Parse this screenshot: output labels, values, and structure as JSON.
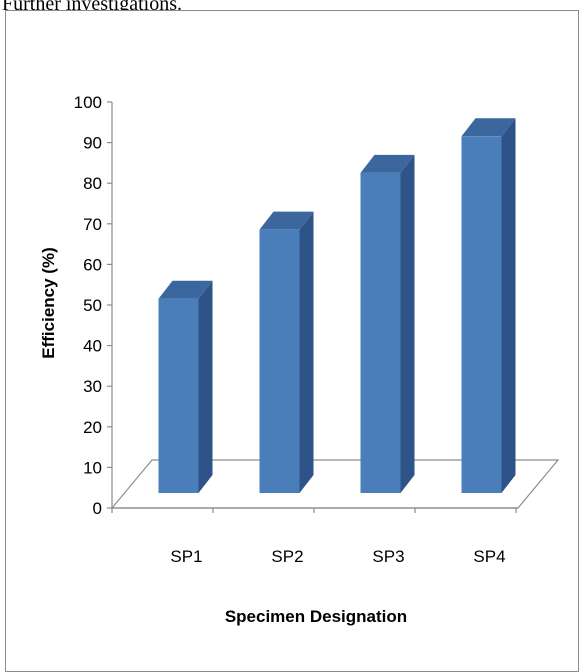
{
  "header": {
    "text": "Further investigations."
  },
  "chart_data": {
    "type": "bar",
    "style": "3d-column",
    "categories": [
      "SP1",
      "SP2",
      "SP3",
      "SP4"
    ],
    "values": [
      55,
      72,
      86,
      95
    ],
    "series": [
      {
        "values": [
          55,
          72,
          86,
          95
        ]
      }
    ],
    "title": "",
    "xlabel": "Specimen Designation",
    "ylabel": "Efficiency (%)",
    "ylim": [
      0,
      100
    ],
    "yticks": [
      "0",
      "10",
      "20",
      "30",
      "40",
      "50",
      "60",
      "70",
      "80",
      "90",
      "100"
    ],
    "grid": false,
    "legend": "none",
    "colors": {
      "bar_front": "#4a7ebb",
      "bar_side": "#2e5388",
      "bar_top": "#3b679e",
      "floor": "#8c8c8c"
    }
  }
}
